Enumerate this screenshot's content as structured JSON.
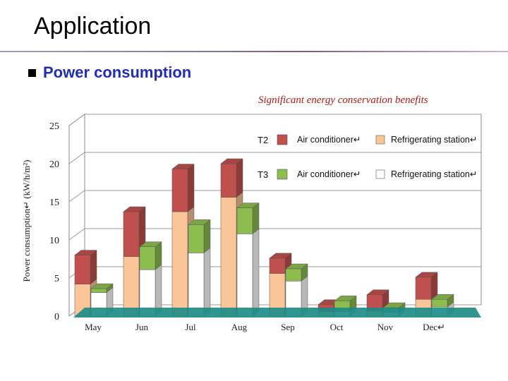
{
  "slide": {
    "title": "Application",
    "bullet": "Power consumption",
    "annotation": "Significant energy conservation benefits"
  },
  "colors": {
    "t2_air": "#c0504d",
    "t2_ref": "#fac597",
    "t3_air": "#8dbd4f",
    "t3_ref": "#ffffff",
    "floor": "#1b8a86",
    "bullet_text": "#1f2fb0",
    "annotation": "#b01818"
  },
  "chart_data": {
    "type": "bar",
    "stacked": true,
    "three_d": true,
    "ylabel": "Power consumption↵ (kW/h/m²)",
    "ylim": [
      0,
      25
    ],
    "yticks": [
      0,
      5,
      10,
      15,
      20,
      25
    ],
    "categories": [
      "May",
      "Jun",
      "Jul",
      "Aug",
      "Sep",
      "Oct",
      "Nov",
      "Dec↵"
    ],
    "groups": [
      {
        "name": "T2",
        "series": [
          {
            "name": "Refrigerating station↵",
            "color": "#fac597",
            "values": [
              4.2,
              7.8,
              13.7,
              15.6,
              5.6,
              0.6,
              0.7,
              2.2
            ]
          },
          {
            "name": "Air conditioner↵",
            "color": "#c0504d",
            "values": [
              3.8,
              5.9,
              5.6,
              4.4,
              2.0,
              0.9,
              2.1,
              2.9
            ]
          }
        ]
      },
      {
        "name": "T3",
        "series": [
          {
            "name": "Refrigerating station↵",
            "color": "#ffffff",
            "values": [
              3.1,
              6.1,
              8.3,
              10.8,
              4.6,
              0.6,
              0.5,
              1.2
            ]
          },
          {
            "name": "Air conditioner↵",
            "color": "#8dbd4f",
            "values": [
              0.5,
              3.0,
              3.7,
              3.4,
              1.6,
              1.4,
              0.6,
              1.0
            ]
          }
        ]
      }
    ],
    "legend": [
      {
        "group": "T2",
        "items": [
          "Air conditioner↵",
          "Refrigerating station↵"
        ]
      },
      {
        "group": "T3",
        "items": [
          "Air conditioner↵",
          "Refrigerating station↵"
        ]
      }
    ],
    "legend_placement": "top-right",
    "grid": true
  }
}
